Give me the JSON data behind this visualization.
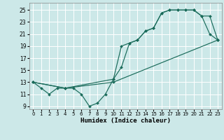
{
  "xlabel": "Humidex (Indice chaleur)",
  "xlim": [
    -0.5,
    23.5
  ],
  "ylim": [
    8.5,
    26.2
  ],
  "yticks": [
    9,
    11,
    13,
    15,
    17,
    19,
    21,
    23,
    25
  ],
  "xticks": [
    0,
    1,
    2,
    3,
    4,
    5,
    6,
    7,
    8,
    9,
    10,
    11,
    12,
    13,
    14,
    15,
    16,
    17,
    18,
    19,
    20,
    21,
    22,
    23
  ],
  "bg_color": "#cce8e8",
  "grid_color": "#aacccc",
  "line_color": "#1a6b5a",
  "lines": [
    {
      "x": [
        0,
        1,
        2,
        3,
        4,
        5,
        6,
        7,
        8,
        9,
        10,
        11,
        12,
        13,
        14,
        15,
        16,
        17,
        18,
        19,
        20,
        21,
        22,
        23
      ],
      "y": [
        13,
        12,
        11,
        12,
        12,
        12,
        11,
        9,
        9.5,
        11,
        13.5,
        19,
        19.5,
        20,
        21.5,
        22,
        24.5,
        25,
        25,
        25,
        25,
        24,
        21,
        20
      ]
    },
    {
      "x": [
        0,
        4,
        10,
        23
      ],
      "y": [
        13,
        12,
        13,
        20
      ]
    },
    {
      "x": [
        0,
        4,
        10,
        11,
        12,
        13,
        14,
        15,
        16,
        17,
        18,
        19,
        20,
        21,
        22,
        23
      ],
      "y": [
        13,
        12,
        13.5,
        15.5,
        19.5,
        20,
        21.5,
        22,
        24.5,
        25,
        25,
        25,
        25,
        24,
        24,
        20
      ]
    }
  ]
}
